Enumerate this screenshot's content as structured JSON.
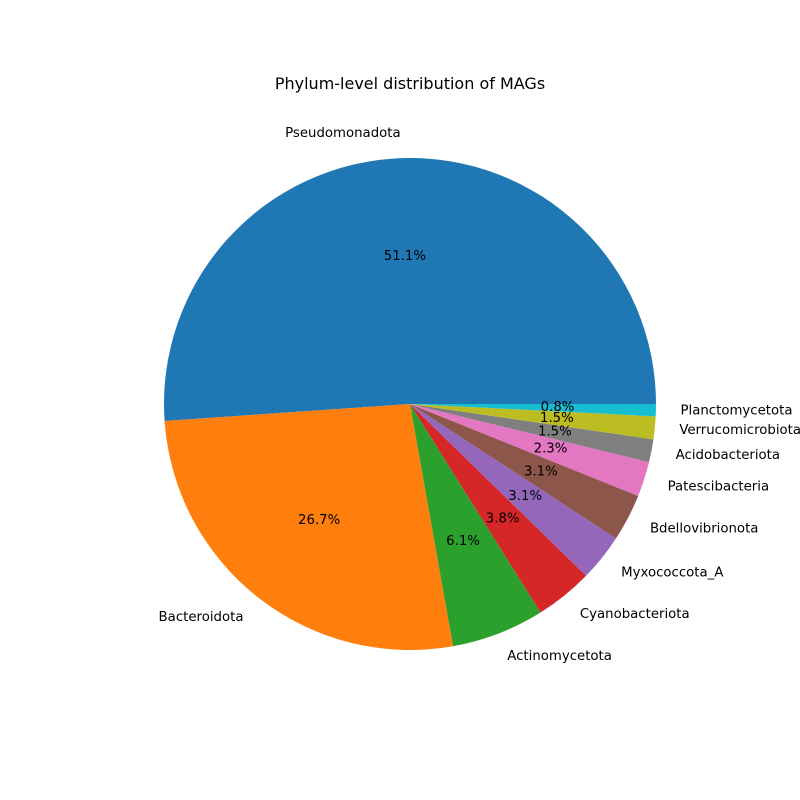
{
  "chart_data": {
    "type": "pie",
    "title": "Phylum-level distribution of MAGs",
    "start_angle_deg": 0,
    "direction": "counterclockwise",
    "categories": [
      "Pseudomonadota",
      "Bacteroidota",
      "Actinomycetota",
      "Cyanobacteriota",
      "Myxococcota_A",
      "Bdellovibrionota",
      "Patescibacteria",
      "Acidobacteriota",
      "Verrucomicrobiota",
      "Planctomycetota"
    ],
    "values": [
      51.1,
      26.7,
      6.1,
      3.8,
      3.1,
      3.1,
      2.3,
      1.5,
      1.5,
      0.8
    ],
    "value_labels": [
      "51.1%",
      "26.7%",
      "6.1%",
      "3.8%",
      "3.1%",
      "3.1%",
      "2.3%",
      "1.5%",
      "1.5%",
      "0.8%"
    ],
    "colors": [
      "#1f77b4",
      "#ff7f0e",
      "#2ca02c",
      "#d62728",
      "#9467bd",
      "#8c564b",
      "#e377c2",
      "#7f7f7f",
      "#bcbd22",
      "#17becf"
    ],
    "legend": "none"
  }
}
